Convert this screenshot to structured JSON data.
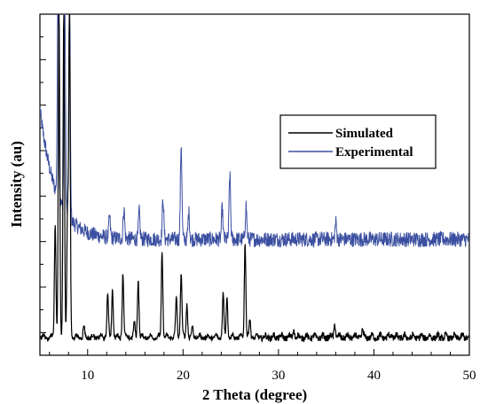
{
  "chart_data": {
    "type": "line",
    "title": "",
    "xlabel": "2 Theta (degree)",
    "ylabel": "Intensity (au)",
    "xlim": [
      5,
      50
    ],
    "x_ticks": [
      10,
      20,
      30,
      40,
      50
    ],
    "y_ticks_labeled": false,
    "grid": false,
    "legend_position": "center-right",
    "series": [
      {
        "name": "Simulated",
        "color": "#000000",
        "baseline": 0.05,
        "peaks": [
          {
            "x": 6.6,
            "y": 0.38
          },
          {
            "x": 7.0,
            "y": 1.0
          },
          {
            "x": 7.5,
            "y": 1.0
          },
          {
            "x": 7.9,
            "y": 0.42
          },
          {
            "x": 8.1,
            "y": 1.0
          },
          {
            "x": 9.6,
            "y": 0.08
          },
          {
            "x": 12.1,
            "y": 0.18
          },
          {
            "x": 12.6,
            "y": 0.19
          },
          {
            "x": 13.7,
            "y": 0.24
          },
          {
            "x": 14.9,
            "y": 0.09
          },
          {
            "x": 15.3,
            "y": 0.22
          },
          {
            "x": 17.8,
            "y": 0.3
          },
          {
            "x": 19.3,
            "y": 0.17
          },
          {
            "x": 19.8,
            "y": 0.24
          },
          {
            "x": 20.4,
            "y": 0.15
          },
          {
            "x": 21.0,
            "y": 0.08
          },
          {
            "x": 24.2,
            "y": 0.18
          },
          {
            "x": 24.6,
            "y": 0.17
          },
          {
            "x": 26.5,
            "y": 0.33
          },
          {
            "x": 27.0,
            "y": 0.1
          },
          {
            "x": 31.6,
            "y": 0.07
          },
          {
            "x": 35.9,
            "y": 0.09
          },
          {
            "x": 38.8,
            "y": 0.07
          },
          {
            "x": 41.8,
            "y": 0.06
          },
          {
            "x": 45.2,
            "y": 0.05
          }
        ]
      },
      {
        "name": "Experimental",
        "color": "#3B4FA0",
        "baseline_decay": {
          "start_x": 5,
          "start_y": 0.72,
          "end_y": 0.34
        },
        "peaks": [
          {
            "x": 6.9,
            "y": 1.0
          },
          {
            "x": 7.6,
            "y": 1.0
          },
          {
            "x": 8.1,
            "y": 1.0
          },
          {
            "x": 12.3,
            "y": 0.42
          },
          {
            "x": 13.8,
            "y": 0.45
          },
          {
            "x": 15.4,
            "y": 0.44
          },
          {
            "x": 17.9,
            "y": 0.48
          },
          {
            "x": 19.8,
            "y": 0.64
          },
          {
            "x": 20.6,
            "y": 0.44
          },
          {
            "x": 24.1,
            "y": 0.45
          },
          {
            "x": 24.9,
            "y": 0.55
          },
          {
            "x": 26.6,
            "y": 0.46
          },
          {
            "x": 36.0,
            "y": 0.41
          }
        ]
      }
    ]
  }
}
